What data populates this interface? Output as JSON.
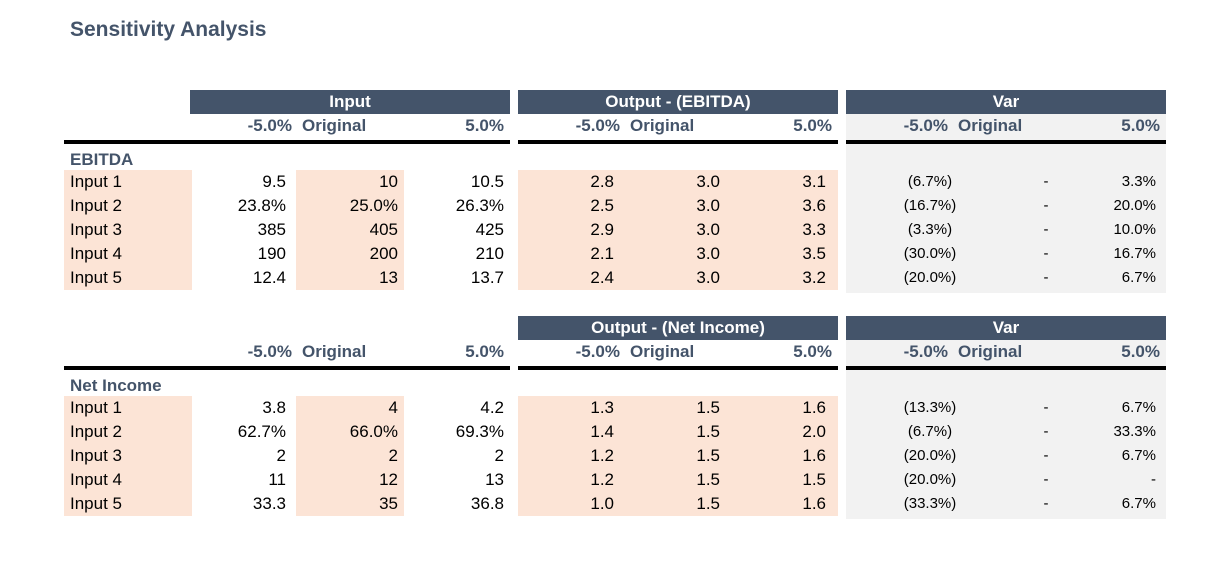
{
  "title": "Sensitivity Analysis",
  "colors": {
    "header_bg": "#44546a",
    "highlight": "#fce4d6",
    "var_bg": "#f2f2f2"
  },
  "column_labels": {
    "minus": "-5.0%",
    "original": "Original",
    "plus": "5.0%"
  },
  "sections": [
    {
      "name": "EBITDA",
      "input_header": "Input",
      "output_header": "Output - (EBITDA)",
      "var_header": "Var",
      "rows": [
        {
          "label": "Input 1",
          "input": [
            "9.5",
            "10",
            "10.5"
          ],
          "output": [
            "2.8",
            "3.0",
            "3.1"
          ],
          "var": [
            "(6.7%)",
            "-",
            "3.3%"
          ]
        },
        {
          "label": "Input 2",
          "input": [
            "23.8%",
            "25.0%",
            "26.3%"
          ],
          "output": [
            "2.5",
            "3.0",
            "3.6"
          ],
          "var": [
            "(16.7%)",
            "-",
            "20.0%"
          ]
        },
        {
          "label": "Input 3",
          "input": [
            "385",
            "405",
            "425"
          ],
          "output": [
            "2.9",
            "3.0",
            "3.3"
          ],
          "var": [
            "(3.3%)",
            "-",
            "10.0%"
          ]
        },
        {
          "label": "Input 4",
          "input": [
            "190",
            "200",
            "210"
          ],
          "output": [
            "2.1",
            "3.0",
            "3.5"
          ],
          "var": [
            "(30.0%)",
            "-",
            "16.7%"
          ]
        },
        {
          "label": "Input 5",
          "input": [
            "12.4",
            "13",
            "13.7"
          ],
          "output": [
            "2.4",
            "3.0",
            "3.2"
          ],
          "var": [
            "(20.0%)",
            "-",
            "6.7%"
          ]
        }
      ]
    },
    {
      "name": "Net Income",
      "input_header": "",
      "output_header": "Output - (Net Income)",
      "var_header": "Var",
      "rows": [
        {
          "label": "Input 1",
          "input": [
            "3.8",
            "4",
            "4.2"
          ],
          "output": [
            "1.3",
            "1.5",
            "1.6"
          ],
          "var": [
            "(13.3%)",
            "-",
            "6.7%"
          ]
        },
        {
          "label": "Input 2",
          "input": [
            "62.7%",
            "66.0%",
            "69.3%"
          ],
          "output": [
            "1.4",
            "1.5",
            "2.0"
          ],
          "var": [
            "(6.7%)",
            "-",
            "33.3%"
          ]
        },
        {
          "label": "Input 3",
          "input": [
            "2",
            "2",
            "2"
          ],
          "output": [
            "1.2",
            "1.5",
            "1.6"
          ],
          "var": [
            "(20.0%)",
            "-",
            "6.7%"
          ]
        },
        {
          "label": "Input 4",
          "input": [
            "11",
            "12",
            "13"
          ],
          "output": [
            "1.2",
            "1.5",
            "1.5"
          ],
          "var": [
            "(20.0%)",
            "-",
            "-"
          ]
        },
        {
          "label": "Input 5",
          "input": [
            "33.3",
            "35",
            "36.8"
          ],
          "output": [
            "1.0",
            "1.5",
            "1.6"
          ],
          "var": [
            "(33.3%)",
            "-",
            "6.7%"
          ]
        }
      ]
    }
  ]
}
